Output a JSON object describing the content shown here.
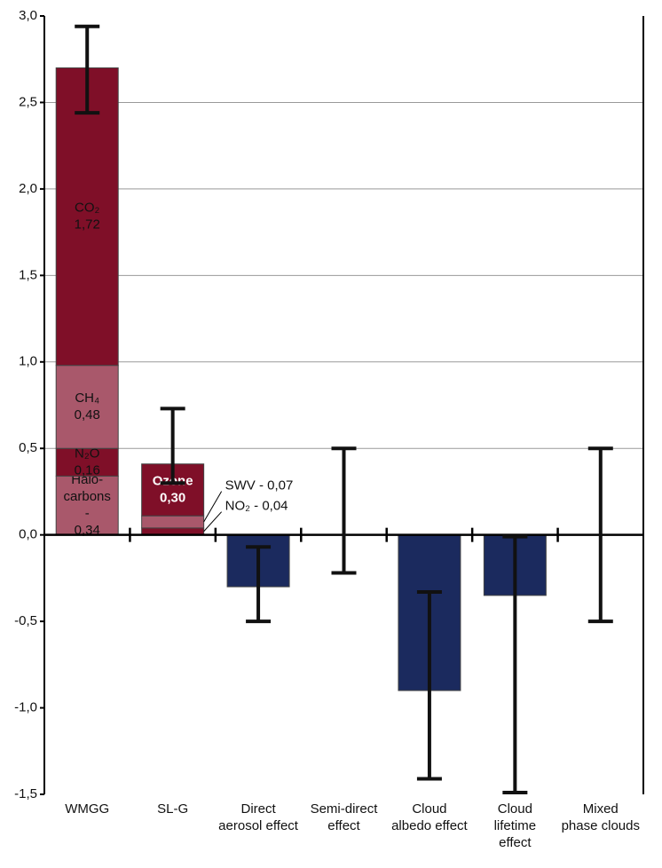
{
  "chart_data": {
    "type": "bar",
    "categories": [
      [
        "WMGG"
      ],
      [
        "SL-G"
      ],
      [
        "Direct",
        "aerosol effect"
      ],
      [
        "Semi-direct",
        "effect"
      ],
      [
        "Cloud",
        "albedo effect"
      ],
      [
        "Cloud",
        "lifetime",
        "effect"
      ],
      [
        "Mixed",
        "phase clouds"
      ]
    ],
    "series": [
      {
        "name": "Halo- carbons -",
        "color": "#a9586b",
        "values": [
          0.34,
          null,
          null,
          null,
          null,
          null,
          null
        ],
        "value_labels": [
          "0,34",
          null,
          null,
          null,
          null,
          null,
          null
        ]
      },
      {
        "name": "N₂O",
        "color": "#7f0f28",
        "values": [
          0.16,
          null,
          null,
          null,
          null,
          null,
          null
        ],
        "value_labels": [
          "0,16",
          null,
          null,
          null,
          null,
          null,
          null
        ]
      },
      {
        "name": "CH₄",
        "color": "#a9586b",
        "values": [
          0.48,
          null,
          null,
          null,
          null,
          null,
          null
        ],
        "value_labels": [
          "0,48",
          null,
          null,
          null,
          null,
          null,
          null
        ]
      },
      {
        "name": "CO₂",
        "color": "#7f0f28",
        "values": [
          1.72,
          null,
          null,
          null,
          null,
          null,
          null
        ],
        "value_labels": [
          "1,72",
          null,
          null,
          null,
          null,
          null,
          null
        ]
      },
      {
        "name": "NO₂ -",
        "color": "#7f0f28",
        "values": [
          null,
          0.04,
          null,
          null,
          null,
          null,
          null
        ],
        "value_labels": [
          null,
          "0,04",
          null,
          null,
          null,
          null,
          null
        ]
      },
      {
        "name": "SWV -",
        "color": "#a9586b",
        "values": [
          null,
          0.07,
          null,
          null,
          null,
          null,
          null
        ],
        "value_labels": [
          null,
          "0,07",
          null,
          null,
          null,
          null,
          null
        ]
      },
      {
        "name": "Ozone",
        "color": "#7f0f28",
        "values": [
          null,
          0.3,
          null,
          null,
          null,
          null,
          null
        ],
        "value_labels": [
          null,
          "0,30",
          null,
          null,
          null,
          null,
          null
        ]
      },
      {
        "color": "#1b2a5e",
        "values": [
          null,
          null,
          -0.3,
          null,
          -0.9,
          -0.35,
          null
        ]
      }
    ],
    "errors": {
      "high": [
        2.94,
        0.73,
        -0.07,
        0.5,
        -0.33,
        -0.01,
        0.5
      ],
      "low": [
        2.44,
        0.3,
        -0.5,
        -0.22,
        -1.41,
        -1.49,
        -0.5
      ]
    },
    "ylim": [
      -1.5,
      3.0
    ],
    "yticks": [
      {
        "value": -1.5,
        "label": "-1,5"
      },
      {
        "value": -1.0,
        "label": "-1,0"
      },
      {
        "value": -0.5,
        "label": "-0,5"
      },
      {
        "value": 0,
        "label": "0,0"
      },
      {
        "value": 0.5,
        "label": "0,5"
      },
      {
        "value": 1.0,
        "label": "1,0"
      },
      {
        "value": 1.5,
        "label": "1,5"
      },
      {
        "value": 2.0,
        "label": "2,0"
      },
      {
        "value": 2.5,
        "label": "2,5"
      },
      {
        "value": 3.0,
        "label": "3,0"
      }
    ],
    "grid": true
  }
}
